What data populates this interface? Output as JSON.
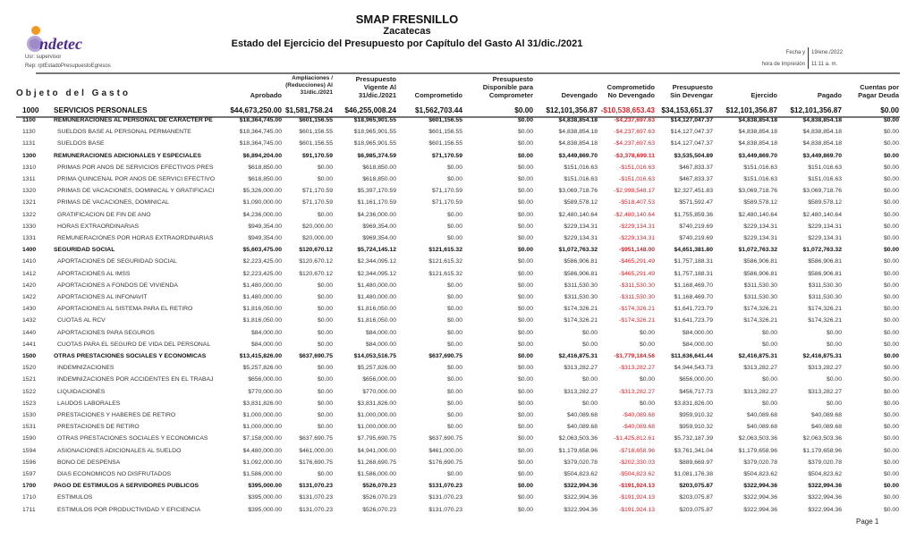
{
  "header": {
    "title": "SMAP FRESNILLO",
    "subtitle": "Zacatecas",
    "report_title": "Estado del Ejercicio del Presupuesto por Capítulo del Gasto Al 31/dic./2021",
    "logo_text": "indetec",
    "user": "Usr: supervisor",
    "report_name": "Rep: rptEstadoPresupuestoEgresos",
    "fecha_label": "Fecha y",
    "fecha_value": "19/ene./2022",
    "hora_label": "hora de Impresión",
    "hora_value": "11:11 a. m."
  },
  "columns": {
    "objeto": "Objeto del Gasto",
    "headers": [
      [
        "Aprobado"
      ],
      [
        "Ampliaciones /",
        "(Reducciones) Al",
        "31/dic./2021"
      ],
      [
        "Presupuesto",
        "Vigente Al",
        "31/dic./2021"
      ],
      [
        "Comprometido"
      ],
      [
        "Presupuesto",
        "Disponible para",
        "Comprometer"
      ],
      [
        "Devengado"
      ],
      [
        "Comprometido",
        "No Devengado"
      ],
      [
        "Presupuesto",
        "Sin Devengar"
      ],
      [
        "Ejercido"
      ],
      [
        "Pagado"
      ],
      [
        "Cuentas por",
        "Pagar Deuda"
      ]
    ]
  },
  "negative_color": "#d0282e",
  "rows": [
    {
      "level": "top",
      "code": "1000",
      "name": "SERVICIOS PERSONALES",
      "values": [
        "$44,673,250.00",
        "$1,581,758.24",
        "$46,255,008.24",
        "$1,562,703.44",
        "$0.00",
        "$12,101,356.87",
        "-$10,538,653.43",
        "$34,153,651.37",
        "$12,101,356.87",
        "$12,101,356.87",
        "$0.00"
      ]
    },
    {
      "level": "bold",
      "code": "1100",
      "name": "REMUNERACIONES AL PERSONAL DE CARÁCTER PE",
      "values": [
        "$18,364,745.00",
        "$601,156.55",
        "$18,965,901.55",
        "$601,156.55",
        "$0.00",
        "$4,838,854.18",
        "-$4,237,697.63",
        "$14,127,047.37",
        "$4,838,854.18",
        "$4,838,854.18",
        "$0.00"
      ]
    },
    {
      "level": "",
      "code": "1130",
      "name": "SUELDOS BASE AL PERSONAL PERMANENTE",
      "values": [
        "$18,364,745.00",
        "$601,156.55",
        "$18,965,901.55",
        "$601,156.55",
        "$0.00",
        "$4,838,854.18",
        "-$4,237,697.63",
        "$14,127,047.37",
        "$4,838,854.18",
        "$4,838,854.18",
        "$0.00"
      ]
    },
    {
      "level": "",
      "code": "1131",
      "name": "SUELDOS BASE",
      "values": [
        "$18,364,745.00",
        "$601,156.55",
        "$18,965,901.55",
        "$601,156.55",
        "$0.00",
        "$4,838,854.18",
        "-$4,237,697.63",
        "$14,127,047.37",
        "$4,838,854.18",
        "$4,838,854.18",
        "$0.00"
      ]
    },
    {
      "level": "bold",
      "code": "1300",
      "name": "REMUNERACIONES ADICIONALES Y ESPECIALES",
      "values": [
        "$6,894,204.00",
        "$91,170.59",
        "$6,985,374.59",
        "$71,170.59",
        "$0.00",
        "$3,449,869.70",
        "-$3,378,699.11",
        "$3,535,504.89",
        "$3,449,869.70",
        "$3,449,869.70",
        "$0.00"
      ]
    },
    {
      "level": "",
      "code": "1310",
      "name": "PRIMAS POR AÑOS DE SERVICIOS EFECTIVOS PRES",
      "values": [
        "$618,850.00",
        "$0.00",
        "$618,850.00",
        "$0.00",
        "$0.00",
        "$151,016.63",
        "-$151,016.63",
        "$467,833.37",
        "$151,016.63",
        "$151,016.63",
        "$0.00"
      ]
    },
    {
      "level": "",
      "code": "1311",
      "name": "PRIMA QUINCENAL POR AÑOS DE SERVICI EFECTIVO",
      "values": [
        "$618,850.00",
        "$0.00",
        "$618,850.00",
        "$0.00",
        "$0.00",
        "$151,016.63",
        "-$151,016.63",
        "$467,833.37",
        "$151,016.63",
        "$151,016.63",
        "$0.00"
      ]
    },
    {
      "level": "",
      "code": "1320",
      "name": "PRIMAS DE VACACIONES, DOMINICAL Y GRATIFICACI",
      "values": [
        "$5,326,000.00",
        "$71,170.59",
        "$5,397,170.59",
        "$71,170.59",
        "$0.00",
        "$3,069,718.76",
        "-$2,998,548.17",
        "$2,327,451.83",
        "$3,069,718.76",
        "$3,069,718.76",
        "$0.00"
      ]
    },
    {
      "level": "",
      "code": "1321",
      "name": "PRIMAS DE VACACIONES, DOMINICAL",
      "values": [
        "$1,090,000.00",
        "$71,170.59",
        "$1,161,170.59",
        "$71,170.59",
        "$0.00",
        "$589,578.12",
        "-$518,407.53",
        "$571,592.47",
        "$589,578.12",
        "$589,578.12",
        "$0.00"
      ]
    },
    {
      "level": "",
      "code": "1322",
      "name": "GRATIFICACIÓN DE FIN DE AÑO",
      "values": [
        "$4,236,000.00",
        "$0.00",
        "$4,236,000.00",
        "$0.00",
        "$0.00",
        "$2,480,140.64",
        "-$2,480,140.64",
        "$1,755,859.36",
        "$2,480,140.64",
        "$2,480,140.64",
        "$0.00"
      ]
    },
    {
      "level": "",
      "code": "1330",
      "name": "HORAS EXTRAORDINARIAS",
      "values": [
        "$949,354.00",
        "$20,000.00",
        "$969,354.00",
        "$0.00",
        "$0.00",
        "$229,134.31",
        "-$229,134.31",
        "$740,219.69",
        "$229,134.31",
        "$229,134.31",
        "$0.00"
      ]
    },
    {
      "level": "",
      "code": "1331",
      "name": "REMUNERACIONES POR HORAS EXTRAORDINARIAS",
      "values": [
        "$949,354.00",
        "$20,000.00",
        "$969,354.00",
        "$0.00",
        "$0.00",
        "$229,134.31",
        "-$229,134.31",
        "$740,219.69",
        "$229,134.31",
        "$229,134.31",
        "$0.00"
      ]
    },
    {
      "level": "bold",
      "code": "1400",
      "name": "SEGURIDAD SOCIAL",
      "values": [
        "$5,603,475.00",
        "$120,670.12",
        "$5,724,145.12",
        "$121,615.32",
        "$0.00",
        "$1,072,763.32",
        "-$951,148.00",
        "$4,651,381.80",
        "$1,072,763.32",
        "$1,072,763.32",
        "$0.00"
      ]
    },
    {
      "level": "",
      "code": "1410",
      "name": "APORTACIONES DE SEGURIDAD SOCIAL",
      "values": [
        "$2,223,425.00",
        "$120,670.12",
        "$2,344,095.12",
        "$121,615.32",
        "$0.00",
        "$586,906.81",
        "-$465,291.49",
        "$1,757,188.31",
        "$586,906.81",
        "$586,906.81",
        "$0.00"
      ]
    },
    {
      "level": "",
      "code": "1412",
      "name": "APORTACIONES AL IMSS",
      "values": [
        "$2,223,425.00",
        "$120,670.12",
        "$2,344,095.12",
        "$121,615.32",
        "$0.00",
        "$586,906.81",
        "-$465,291.49",
        "$1,757,188.31",
        "$586,906.81",
        "$586,906.81",
        "$0.00"
      ]
    },
    {
      "level": "",
      "code": "1420",
      "name": "APORTACIONES A FONDOS DE VIVIENDA",
      "values": [
        "$1,480,000.00",
        "$0.00",
        "$1,480,000.00",
        "$0.00",
        "$0.00",
        "$311,530.30",
        "-$311,530.30",
        "$1,168,469.70",
        "$311,530.30",
        "$311,530.30",
        "$0.00"
      ]
    },
    {
      "level": "",
      "code": "1422",
      "name": "APORTACIONES AL INFONAVIT",
      "values": [
        "$1,480,000.00",
        "$0.00",
        "$1,480,000.00",
        "$0.00",
        "$0.00",
        "$311,530.30",
        "-$311,530.30",
        "$1,168,469.70",
        "$311,530.30",
        "$311,530.30",
        "$0.00"
      ]
    },
    {
      "level": "",
      "code": "1430",
      "name": "APORTACIONES AL SISTEMA PARA EL RETIRO",
      "values": [
        "$1,816,050.00",
        "$0.00",
        "$1,816,050.00",
        "$0.00",
        "$0.00",
        "$174,326.21",
        "-$174,326.21",
        "$1,641,723.79",
        "$174,326.21",
        "$174,326.21",
        "$0.00"
      ]
    },
    {
      "level": "",
      "code": "1432",
      "name": "CUOTAS AL RCV",
      "values": [
        "$1,816,050.00",
        "$0.00",
        "$1,816,050.00",
        "$0.00",
        "$0.00",
        "$174,326.21",
        "-$174,326.21",
        "$1,641,723.79",
        "$174,326.21",
        "$174,326.21",
        "$0.00"
      ]
    },
    {
      "level": "",
      "code": "1440",
      "name": "APORTACIONES PARA SEGUROS",
      "values": [
        "$84,000.00",
        "$0.00",
        "$84,000.00",
        "$0.00",
        "$0.00",
        "$0.00",
        "$0.00",
        "$84,000.00",
        "$0.00",
        "$0.00",
        "$0.00"
      ]
    },
    {
      "level": "",
      "code": "1441",
      "name": "CUOTAS PARA EL SEGURO DE VIDA DEL PERSONAL",
      "values": [
        "$84,000.00",
        "$0.00",
        "$84,000.00",
        "$0.00",
        "$0.00",
        "$0.00",
        "$0.00",
        "$84,000.00",
        "$0.00",
        "$0.00",
        "$0.00"
      ]
    },
    {
      "level": "bold",
      "code": "1500",
      "name": "OTRAS PRESTACIONES SOCIALES Y ECONÓMICAS",
      "values": [
        "$13,415,826.00",
        "$637,690.75",
        "$14,053,516.75",
        "$637,690.75",
        "$0.00",
        "$2,416,875.31",
        "-$1,779,184.56",
        "$11,636,641.44",
        "$2,416,875.31",
        "$2,416,875.31",
        "$0.00"
      ]
    },
    {
      "level": "",
      "code": "1520",
      "name": "INDEMNIZACIONES",
      "values": [
        "$5,257,826.00",
        "$0.00",
        "$5,257,826.00",
        "$0.00",
        "$0.00",
        "$313,282.27",
        "-$313,282.27",
        "$4,944,543.73",
        "$313,282.27",
        "$313,282.27",
        "$0.00"
      ]
    },
    {
      "level": "",
      "code": "1521",
      "name": "INDEMNIZACIONES POR ACCIDENTES EN EL TRABAJ",
      "values": [
        "$656,000.00",
        "$0.00",
        "$656,000.00",
        "$0.00",
        "$0.00",
        "$0.00",
        "$0.00",
        "$656,000.00",
        "$0.00",
        "$0.00",
        "$0.00"
      ]
    },
    {
      "level": "",
      "code": "1522",
      "name": "LIQUIDACIONES",
      "values": [
        "$770,000.00",
        "$0.00",
        "$770,000.00",
        "$0.00",
        "$0.00",
        "$313,282.27",
        "-$313,282.27",
        "$456,717.73",
        "$313,282.27",
        "$313,282.27",
        "$0.00"
      ]
    },
    {
      "level": "",
      "code": "1523",
      "name": "LAUDOS LABORALES",
      "values": [
        "$3,831,826.00",
        "$0.00",
        "$3,831,826.00",
        "$0.00",
        "$0.00",
        "$0.00",
        "$0.00",
        "$3,831,826.00",
        "$0.00",
        "$0.00",
        "$0.00"
      ]
    },
    {
      "level": "",
      "code": "1530",
      "name": "PRESTACIONES Y HABERES DE RETIRO",
      "values": [
        "$1,000,000.00",
        "$0.00",
        "$1,000,000.00",
        "$0.00",
        "$0.00",
        "$40,089.68",
        "-$40,089.68",
        "$959,910.32",
        "$40,089.68",
        "$40,089.68",
        "$0.00"
      ]
    },
    {
      "level": "",
      "code": "1531",
      "name": "PRESTACIONES DE RETIRO",
      "values": [
        "$1,000,000.00",
        "$0.00",
        "$1,000,000.00",
        "$0.00",
        "$0.00",
        "$40,089.68",
        "-$40,089.68",
        "$959,910.32",
        "$40,089.68",
        "$40,089.68",
        "$0.00"
      ]
    },
    {
      "level": "",
      "code": "1590",
      "name": "OTRAS PRESTACIONES SOCIALES Y ECONÓMICAS",
      "values": [
        "$7,158,000.00",
        "$637,690.75",
        "$7,795,690.75",
        "$637,690.75",
        "$0.00",
        "$2,063,503.36",
        "-$1,425,812.61",
        "$5,732,187.39",
        "$2,063,503.36",
        "$2,063,503.36",
        "$0.00"
      ]
    },
    {
      "level": "",
      "code": "1594",
      "name": "ASIGNACIONES ADICIONALES AL SUELDO",
      "values": [
        "$4,480,000.00",
        "$461,000.00",
        "$4,941,000.00",
        "$461,000.00",
        "$0.00",
        "$1,179,658.96",
        "-$718,658.96",
        "$3,761,341.04",
        "$1,179,658.96",
        "$1,179,658.96",
        "$0.00"
      ]
    },
    {
      "level": "",
      "code": "1596",
      "name": "BONO DE DESPENSA",
      "values": [
        "$1,092,000.00",
        "$176,690.75",
        "$1,268,690.75",
        "$176,690.75",
        "$0.00",
        "$379,020.78",
        "-$202,330.03",
        "$889,669.97",
        "$379,020.78",
        "$379,020.78",
        "$0.00"
      ]
    },
    {
      "level": "",
      "code": "1597",
      "name": "DÍAS ECONÓMICOS NO DISFRUTADOS",
      "values": [
        "$1,586,000.00",
        "$0.00",
        "$1,586,000.00",
        "$0.00",
        "$0.00",
        "$504,823.62",
        "-$504,823.62",
        "$1,081,176.38",
        "$504,823.62",
        "$504,823.62",
        "$0.00"
      ]
    },
    {
      "level": "bold",
      "code": "1700",
      "name": "PAGO DE ESTÍMULOS A SERVIDORES PÚBLICOS",
      "values": [
        "$395,000.00",
        "$131,070.23",
        "$526,070.23",
        "$131,070.23",
        "$0.00",
        "$322,994.36",
        "-$191,924.13",
        "$203,075.87",
        "$322,994.36",
        "$322,994.36",
        "$0.00"
      ]
    },
    {
      "level": "",
      "code": "1710",
      "name": "ESTÍMULOS",
      "values": [
        "$395,000.00",
        "$131,070.23",
        "$526,070.23",
        "$131,070.23",
        "$0.00",
        "$322,994.36",
        "-$191,924.13",
        "$203,075.87",
        "$322,994.36",
        "$322,994.36",
        "$0.00"
      ]
    },
    {
      "level": "",
      "code": "1711",
      "name": "ESTÍMULOS POR PRODUCTIVIDAD Y EFICIENCIA",
      "values": [
        "$395,000.00",
        "$131,070.23",
        "$526,070.23",
        "$131,070.23",
        "$0.00",
        "$322,994.36",
        "-$191,924.13",
        "$203,075.87",
        "$322,994.36",
        "$322,994.36",
        "$0.00"
      ]
    }
  ],
  "footer": {
    "page": "Page 1"
  }
}
